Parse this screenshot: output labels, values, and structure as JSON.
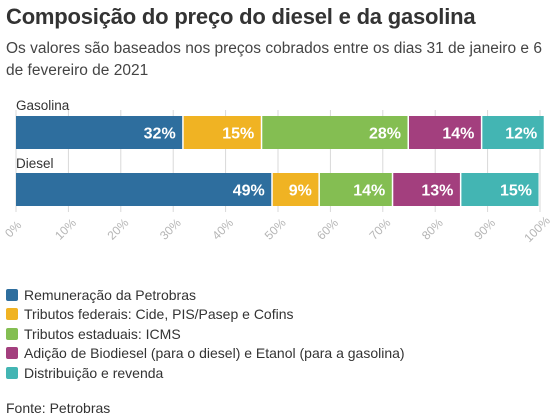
{
  "chart_data": {
    "type": "bar",
    "orientation": "horizontal",
    "stacked": true,
    "title": "Composição do preço do diesel e da gasolina",
    "subtitle": "Os valores são baseados nos preços cobrados entre os dias 31 de janeiro e 6 de fevereiro de 2021",
    "categories": [
      "Gasolina",
      "Diesel"
    ],
    "series": [
      {
        "name": "Remuneração da Petrobras",
        "color": "#2E6E9E",
        "values": [
          32,
          49
        ],
        "labels": [
          "32%",
          "49%"
        ]
      },
      {
        "name": "Tributos federais: Cide, PIS/Pasep e Cofins",
        "color": "#F0B323",
        "values": [
          15,
          9
        ],
        "labels": [
          "15%",
          "9%"
        ]
      },
      {
        "name": "Tributos estaduais: ICMS",
        "color": "#84BE52",
        "values": [
          28,
          14
        ],
        "labels": [
          "28%",
          "14%"
        ]
      },
      {
        "name": "Adição de Biodiesel (para o diesel) e Etanol (para a gasolina)",
        "color": "#A33F7E",
        "values": [
          14,
          13
        ],
        "labels": [
          "14%",
          "13%"
        ]
      },
      {
        "name": "Distribuição e revenda",
        "color": "#43B5B3",
        "values": [
          12,
          15
        ],
        "labels": [
          "12%",
          "15%"
        ]
      }
    ],
    "xlim": [
      0,
      100
    ],
    "xticks": [
      0,
      10,
      20,
      30,
      40,
      50,
      60,
      70,
      80,
      90,
      100
    ],
    "xtick_labels": [
      "0%",
      "10%",
      "20%",
      "30%",
      "40%",
      "50%",
      "60%",
      "70%",
      "80%",
      "90%",
      "100%"
    ],
    "grid": true,
    "legend_position": "bottom"
  },
  "source": "Fonte: Petrobras"
}
